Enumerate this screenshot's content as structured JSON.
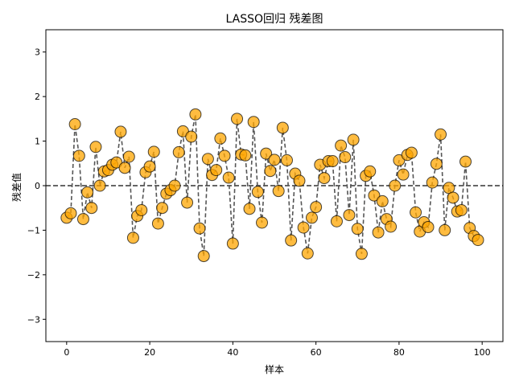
{
  "chart_data": {
    "type": "scatter",
    "title": "LASSO回归 残差图",
    "xlabel": "样本",
    "ylabel": "残差值",
    "xlim": [
      -5,
      105
    ],
    "ylim": [
      -3.5,
      3.5
    ],
    "xticks": [
      0,
      20,
      40,
      60,
      80,
      100
    ],
    "yticks": [
      -3,
      -2,
      -1,
      0,
      1,
      2,
      3
    ],
    "ytick_labels": [
      "−3",
      "−2",
      "−1",
      "0",
      "1",
      "2",
      "3"
    ],
    "grid": false,
    "legend": "none",
    "reference_line": 0,
    "marker_color": "#ffa500",
    "marker_edge": "#000000",
    "line_color": "#555555",
    "x": [
      0,
      1,
      2,
      3,
      4,
      5,
      6,
      7,
      8,
      9,
      10,
      11,
      12,
      13,
      14,
      15,
      16,
      17,
      18,
      19,
      20,
      21,
      22,
      23,
      24,
      25,
      26,
      27,
      28,
      29,
      30,
      31,
      32,
      33,
      34,
      35,
      36,
      37,
      38,
      39,
      40,
      41,
      42,
      43,
      44,
      45,
      46,
      47,
      48,
      49,
      50,
      51,
      52,
      53,
      54,
      55,
      56,
      57,
      58,
      59,
      60,
      61,
      62,
      63,
      64,
      65,
      66,
      67,
      68,
      69,
      70,
      71,
      72,
      73,
      74,
      75,
      76,
      77,
      78,
      79,
      80,
      81,
      82,
      83,
      84,
      85,
      86,
      87,
      88,
      89,
      90,
      91,
      92,
      93,
      94,
      95,
      96,
      97,
      98,
      99
    ],
    "y": [
      -0.72,
      -0.62,
      1.38,
      0.67,
      -0.75,
      -0.15,
      -0.5,
      0.87,
      0.0,
      0.32,
      0.35,
      0.47,
      0.52,
      1.21,
      0.4,
      0.65,
      -1.17,
      -0.68,
      -0.55,
      0.3,
      0.43,
      0.76,
      -0.85,
      -0.5,
      -0.18,
      -0.1,
      0.0,
      0.75,
      1.22,
      -0.38,
      1.1,
      1.6,
      -0.96,
      -1.58,
      0.6,
      0.24,
      0.35,
      1.06,
      0.67,
      0.18,
      -1.3,
      1.5,
      0.7,
      0.68,
      -0.52,
      1.43,
      -0.14,
      -0.83,
      0.72,
      0.33,
      0.58,
      -0.12,
      1.3,
      0.57,
      -1.23,
      0.27,
      0.11,
      -0.94,
      -1.52,
      -0.72,
      -0.48,
      0.47,
      0.17,
      0.55,
      0.55,
      -0.8,
      0.9,
      0.64,
      -0.66,
      1.03,
      -0.97,
      -1.53,
      0.22,
      0.32,
      -0.22,
      -1.05,
      -0.35,
      -0.75,
      -0.92,
      0.0,
      0.57,
      0.25,
      0.69,
      0.74,
      -0.6,
      -1.03,
      -0.82,
      -0.93,
      0.07,
      0.49,
      1.15,
      -1.0,
      -0.05,
      -0.27,
      -0.58,
      -0.55,
      0.54,
      -0.95,
      -1.13,
      -1.22
    ]
  }
}
